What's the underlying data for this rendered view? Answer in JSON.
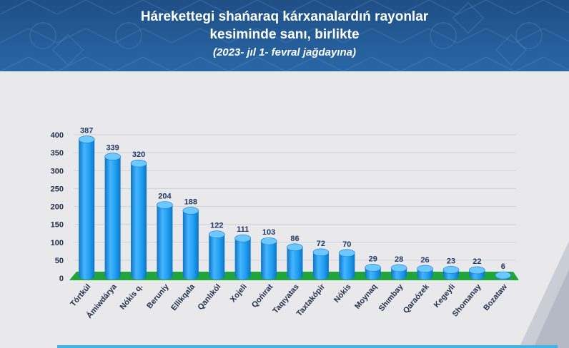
{
  "slide": {
    "title_line1": "Hárekettegi shańaraq kárxanalardıń rayonlar",
    "title_line2": "kesiminde sanı, birlikte",
    "subtitle": "(2023- jıl 1- fevral jağdayına)"
  },
  "colors": {
    "banner": "#245c98",
    "bar": "#1e9cf0",
    "bar_dark": "#0f74c4",
    "floor": "#1fa53a",
    "value_label": "#1f3864",
    "panel": "#e9e9ec"
  },
  "chart_data": {
    "type": "bar",
    "title": "",
    "xlabel": "",
    "ylabel": "",
    "ylim": [
      0,
      400
    ],
    "yticks": [
      0,
      50,
      100,
      150,
      200,
      250,
      300,
      350,
      400
    ],
    "grid": true,
    "categories": [
      "Tórtkúl",
      "Ámiwdárya",
      "Nókis q.",
      "Beruniy",
      "Ellikqala",
      "Qanlıkól",
      "Xojeli",
      "Qońırat",
      "Taqıyatas",
      "Taxtakópir",
      "Nókis",
      "Moynaq",
      "Shımbay",
      "Qaraózek",
      "Kegeyli",
      "Shomanay",
      "Bozataw"
    ],
    "values": [
      387,
      339,
      320,
      204,
      188,
      122,
      111,
      103,
      86,
      72,
      70,
      29,
      28,
      26,
      23,
      22,
      6
    ],
    "value_labels": [
      "387",
      "339",
      "320",
      "204",
      "188",
      "122",
      "111",
      "103",
      "86",
      "72",
      "70",
      "29",
      "28",
      "26",
      "23",
      "22",
      "6"
    ]
  }
}
